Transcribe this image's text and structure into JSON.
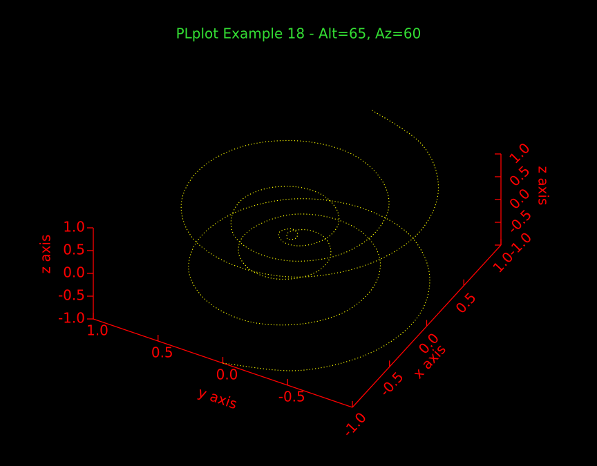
{
  "chart_data": {
    "type": "line3d",
    "title": "PLplot Example 18 - Alt=65, Az=60",
    "xlabel": "x axis",
    "ylabel": "y axis",
    "zlabel": "z axis",
    "color": "#ffff00",
    "axis_color": "#ff0000",
    "title_color": "#33dd33",
    "xlim": [
      -1,
      1
    ],
    "ylim": [
      -1,
      1
    ],
    "zlim": [
      -1,
      1
    ],
    "xticks": [
      {
        "value": -1,
        "label": "-1.0"
      },
      -0.5,
      {
        "value": 0,
        "label": "0.0"
      },
      0.5,
      {
        "value": 1,
        "label": "1.0"
      }
    ],
    "yticks": [
      {
        "value": 1,
        "label": "1.0"
      },
      0.5,
      {
        "value": 0,
        "label": "0.0"
      },
      -0.5
    ],
    "zticks": [
      {
        "value": 1,
        "label": "1.0"
      },
      0.5,
      {
        "value": 0,
        "label": "0.0"
      },
      -0.5,
      {
        "value": -1,
        "label": "-1.0"
      }
    ],
    "x": [
      -1,
      -0.84,
      -0.47,
      0,
      0.44,
      0.75,
      0.83,
      0.7,
      0.39,
      0,
      -0.36,
      -0.6,
      -0.67,
      -0.55,
      -0.31,
      0,
      0.28,
      0.46,
      0.5,
      0.41,
      0.22,
      0,
      -0.19,
      -0.31,
      -0.33,
      -0.26,
      -0.14,
      0,
      0.11,
      0.17,
      0.17,
      0.12,
      0.06,
      0,
      -0.03,
      -0.02,
      0,
      0.02,
      0.03,
      0,
      -0.06,
      -0.12,
      -0.17,
      -0.17,
      -0.11,
      0,
      0.14,
      0.26,
      0.33,
      0.31,
      0.19,
      0,
      -0.22,
      -0.41,
      -0.5,
      -0.46,
      -0.28,
      0,
      0.31,
      0.55,
      0.67,
      0.6,
      0.36,
      0,
      -0.39,
      -0.7,
      -0.83,
      -0.75,
      -0.44,
      0,
      0.47,
      0.84,
      1
    ],
    "y": [
      0,
      -0.49,
      -0.82,
      -0.92,
      -0.77,
      -0.43,
      0,
      0.4,
      0.67,
      0.75,
      0.63,
      0.35,
      0,
      -0.32,
      -0.53,
      -0.58,
      -0.48,
      -0.26,
      0,
      0.24,
      0.38,
      0.42,
      0.34,
      0.18,
      0,
      -0.15,
      -0.24,
      -0.25,
      -0.19,
      -0.1,
      0,
      0.07,
      0.1,
      0.08,
      0.05,
      0.01,
      0,
      0.01,
      0.05,
      0.08,
      0.1,
      0.07,
      0,
      -0.1,
      -0.19,
      -0.25,
      -0.24,
      -0.15,
      0,
      0.18,
      0.34,
      0.42,
      0.38,
      0.24,
      0,
      -0.26,
      -0.48,
      -0.58,
      -0.53,
      -0.32,
      0,
      0.35,
      0.63,
      0.75,
      0.67,
      0.4,
      0,
      -0.43,
      -0.77,
      -0.92,
      -0.82,
      -0.49,
      0
    ],
    "z": [
      -1,
      -0.972,
      -0.944,
      -0.917,
      -0.889,
      -0.861,
      -0.833,
      -0.806,
      -0.778,
      -0.75,
      -0.722,
      -0.694,
      -0.667,
      -0.639,
      -0.611,
      -0.583,
      -0.556,
      -0.528,
      -0.5,
      -0.472,
      -0.444,
      -0.417,
      -0.389,
      -0.361,
      -0.333,
      -0.306,
      -0.278,
      -0.25,
      -0.222,
      -0.194,
      -0.167,
      -0.139,
      -0.111,
      -0.083,
      -0.056,
      -0.028,
      0,
      0.028,
      0.056,
      0.083,
      0.111,
      0.139,
      0.167,
      0.194,
      0.222,
      0.25,
      0.278,
      0.306,
      0.333,
      0.361,
      0.389,
      0.417,
      0.444,
      0.472,
      0.5,
      0.528,
      0.556,
      0.583,
      0.611,
      0.639,
      0.667,
      0.694,
      0.722,
      0.75,
      0.778,
      0.806,
      0.833,
      0.861,
      0.889,
      0.917,
      0.944,
      0.972,
      1
    ]
  }
}
